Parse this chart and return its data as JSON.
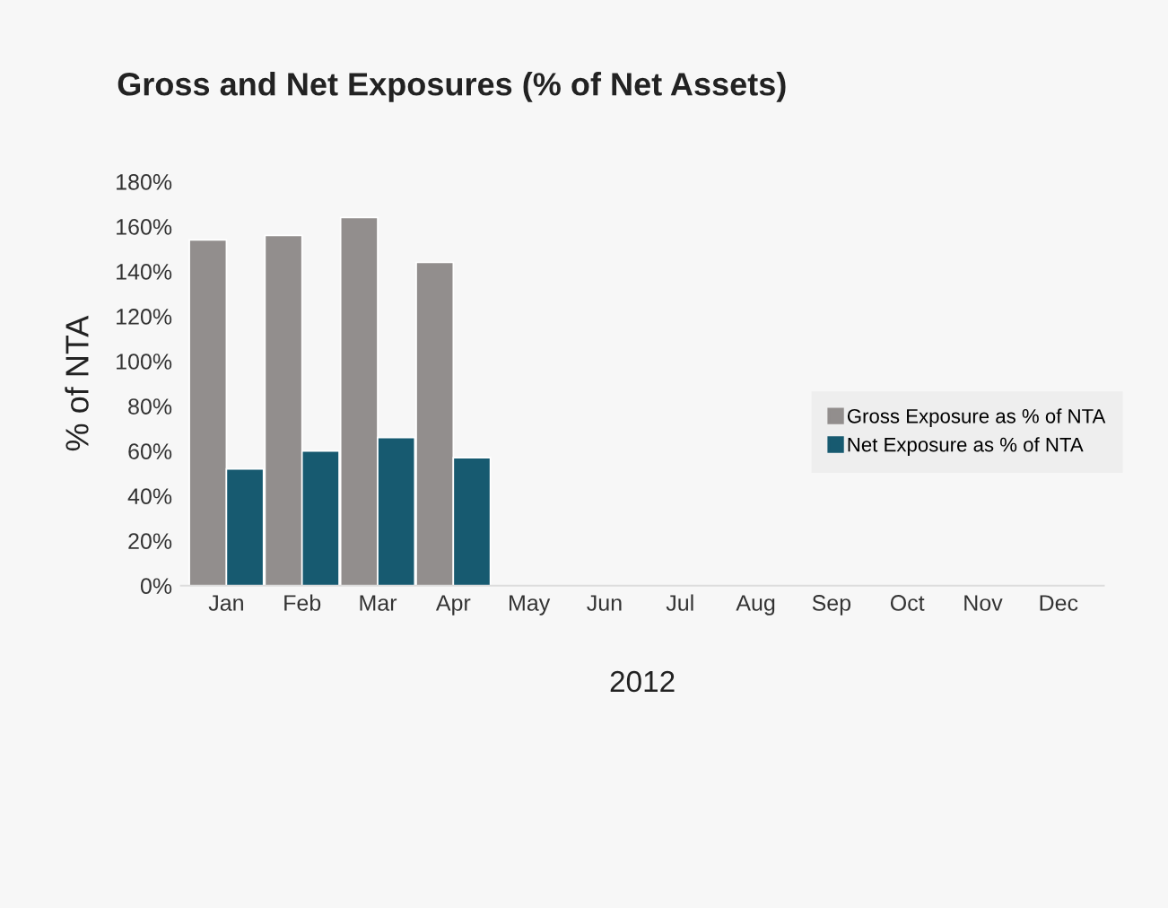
{
  "chart_data": {
    "type": "bar",
    "title": "Gross and Net Exposures (% of Net Assets)",
    "xlabel": "2012",
    "ylabel": "% of NTA",
    "categories": [
      "Jan",
      "Feb",
      "Mar",
      "Apr",
      "May",
      "Jun",
      "Jul",
      "Aug",
      "Sep",
      "Oct",
      "Nov",
      "Dec"
    ],
    "series": [
      {
        "name": "Gross Exposure as % of NTA",
        "color": "#928e8d",
        "values": [
          154,
          156,
          164,
          144,
          null,
          null,
          null,
          null,
          null,
          null,
          null,
          null
        ]
      },
      {
        "name": "Net Exposure as % of NTA",
        "color": "#175a70",
        "values": [
          52,
          60,
          66,
          57,
          null,
          null,
          null,
          null,
          null,
          null,
          null,
          null
        ]
      }
    ],
    "ylim": [
      0,
      180
    ],
    "yticks": [
      {
        "value": 0,
        "label": "0%"
      },
      {
        "value": 20,
        "label": "20%"
      },
      {
        "value": 40,
        "label": "40%"
      },
      {
        "value": 60,
        "label": "60%"
      },
      {
        "value": 80,
        "label": "80%"
      },
      {
        "value": 100,
        "label": "100%"
      },
      {
        "value": 120,
        "label": "120%"
      },
      {
        "value": 140,
        "label": "140%"
      },
      {
        "value": 160,
        "label": "160%"
      },
      {
        "value": 180,
        "label": "180%"
      }
    ],
    "grid": false,
    "legend": "right"
  }
}
